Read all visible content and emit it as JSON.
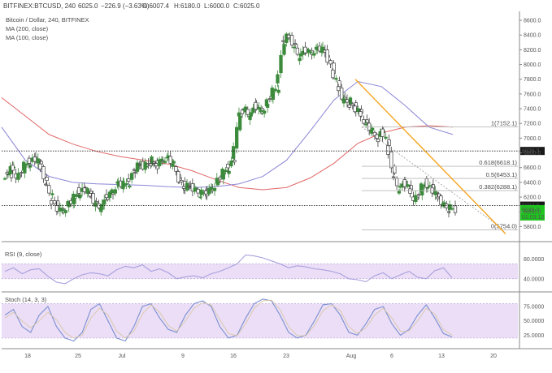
{
  "header": {
    "symbol_line": "BITFINEX:BTCUSD, 240",
    "last": "6025.0",
    "change": "−226.9 (−3.63%)",
    "open": "O:6007.4",
    "high": "H:6180.0",
    "low": "L:6000.0",
    "close": "C:6025.0",
    "title": "Bitcoin / Dollar, 240, BITFINEX",
    "ma200": "MA (200, close)",
    "ma100": "MA (100, close)"
  },
  "colors": {
    "up": "#3c8a3c",
    "down": "#3c3c3c",
    "ma200": "#e06767",
    "ma100": "#8a86d6",
    "trendline": "#f5a623",
    "level": "#b8b8b8",
    "osc": "#a8a0de",
    "osc_band": "#e8d8f5",
    "price_badge": "#1ec41e"
  },
  "chart_data": [
    {
      "type": "candlestick",
      "title": "Bitcoin / Dollar, 240, BITFINEX",
      "x_tick_labels": [
        "18",
        "25",
        "Jul",
        "9",
        "16",
        "23",
        "Aug",
        "6",
        "13",
        "20"
      ],
      "y_ticks": [
        5800,
        6000,
        6200,
        6400,
        6600,
        6800,
        7000,
        7200,
        7400,
        7600,
        7800,
        8000,
        8200,
        8400,
        8600
      ],
      "y_tick_labels": [
        "5800.0",
        "6000.0",
        "6200.0",
        "6400.0",
        "6600.0",
        "6800.0",
        "7000.0",
        "7200.0",
        "7400.0",
        "7600.0",
        "7800.0",
        "8000.0",
        "8200.0",
        "8400.0",
        "8600.0"
      ],
      "ylim": [
        5650,
        8700
      ],
      "close_series_approx": [
        6500,
        6620,
        6450,
        6600,
        6680,
        6720,
        6650,
        6400,
        6200,
        6050,
        6000,
        6100,
        6150,
        6280,
        6300,
        6250,
        6100,
        6050,
        6200,
        6250,
        6400,
        6350,
        6400,
        6550,
        6650,
        6600,
        6700,
        6620,
        6700,
        6750,
        6650,
        6500,
        6320,
        6350,
        6300,
        6250,
        6250,
        6300,
        6400,
        6500,
        6600,
        6700,
        7300,
        7400,
        7300,
        7450,
        7350,
        7450,
        7600,
        7700,
        8300,
        8400,
        8250,
        8100,
        8200,
        8150,
        8220,
        8200,
        8150,
        7900,
        7700,
        7500,
        7500,
        7400,
        7350,
        7200,
        7100,
        7000,
        7100,
        6900,
        6500,
        6300,
        6400,
        6300,
        6150,
        6300,
        6400,
        6300,
        6200,
        6100,
        6050,
        6025
      ],
      "ma200_series_approx": [
        7550,
        7300,
        7050,
        6920,
        6820,
        6750,
        6700,
        6650,
        6560,
        6440,
        6330,
        6300,
        6330,
        6460,
        6660,
        6930,
        7070,
        7150,
        7170,
        7150
      ],
      "ma100_series_approx": [
        7150,
        6700,
        6480,
        6400,
        6380,
        6370,
        6360,
        6340,
        6330,
        6340,
        6380,
        6480,
        6700,
        7100,
        7520,
        7770,
        7700,
        7440,
        7150,
        7050
      ],
      "horizontal_levels": [
        {
          "value": 6826.3,
          "label": "6826.3"
        },
        {
          "value": 6084.0,
          "label": "6084.0"
        }
      ],
      "fibonacci": [
        {
          "ratio": "1",
          "value": 7152.1,
          "label": "1(7152.1)"
        },
        {
          "ratio": "0.618",
          "value": 6618.1,
          "label": "0.618(6618.1)"
        },
        {
          "ratio": "0.5",
          "value": 6453.1,
          "label": "0.5(6453.1)"
        },
        {
          "ratio": "0.382",
          "value": 6288.1,
          "label": "0.382(6288.1)"
        },
        {
          "ratio": "0",
          "value": 5754.0,
          "label": "0(5754.0)"
        }
      ],
      "trendline": {
        "from_value": 7800,
        "to_value": 5700
      },
      "price_badge": "6025.0",
      "countdown_badge": "01:03:12"
    },
    {
      "type": "line",
      "title": "RSI (9, close)",
      "y_ticks": [
        40,
        80
      ],
      "y_tick_labels": [
        "40.0000",
        "80.0000"
      ],
      "ylim": [
        20,
        100
      ],
      "band": [
        40,
        70
      ],
      "values": [
        55,
        62,
        50,
        58,
        60,
        45,
        33,
        30,
        40,
        48,
        52,
        50,
        46,
        58,
        65,
        62,
        68,
        55,
        60,
        52,
        40,
        44,
        46,
        42,
        50,
        55,
        62,
        70,
        88,
        86,
        82,
        76,
        70,
        62,
        66,
        64,
        60,
        58,
        55,
        50,
        40,
        38,
        34,
        46,
        52,
        40,
        48,
        55,
        43,
        40,
        56,
        62,
        42
      ]
    },
    {
      "type": "line",
      "title": "Stoch (14, 3, 3)",
      "y_ticks": [
        25,
        50,
        75
      ],
      "y_tick_labels": [
        "25.0000",
        "50.0000",
        "75.0000"
      ],
      "ylim": [
        10,
        92
      ],
      "band": [
        20,
        80
      ],
      "series": [
        {
          "values": [
            60,
            70,
            40,
            30,
            60,
            75,
            40,
            20,
            15,
            30,
            70,
            80,
            50,
            20,
            15,
            40,
            75,
            80,
            55,
            35,
            30,
            60,
            80,
            85,
            75,
            40,
            20,
            25,
            55,
            80,
            88,
            85,
            60,
            30,
            20,
            25,
            50,
            78,
            80,
            60,
            30,
            25,
            45,
            70,
            75,
            45,
            25,
            35,
            60,
            78,
            55,
            28,
            22
          ]
        },
        {
          "values": [
            55,
            65,
            50,
            38,
            50,
            65,
            52,
            30,
            20,
            25,
            55,
            72,
            60,
            32,
            20,
            32,
            62,
            78,
            65,
            42,
            32,
            50,
            72,
            82,
            78,
            52,
            28,
            24,
            45,
            72,
            85,
            86,
            70,
            40,
            24,
            24,
            42,
            68,
            78,
            68,
            40,
            28,
            38,
            60,
            72,
            55,
            32,
            32,
            50,
            72,
            62,
            35,
            25
          ]
        }
      ]
    }
  ]
}
